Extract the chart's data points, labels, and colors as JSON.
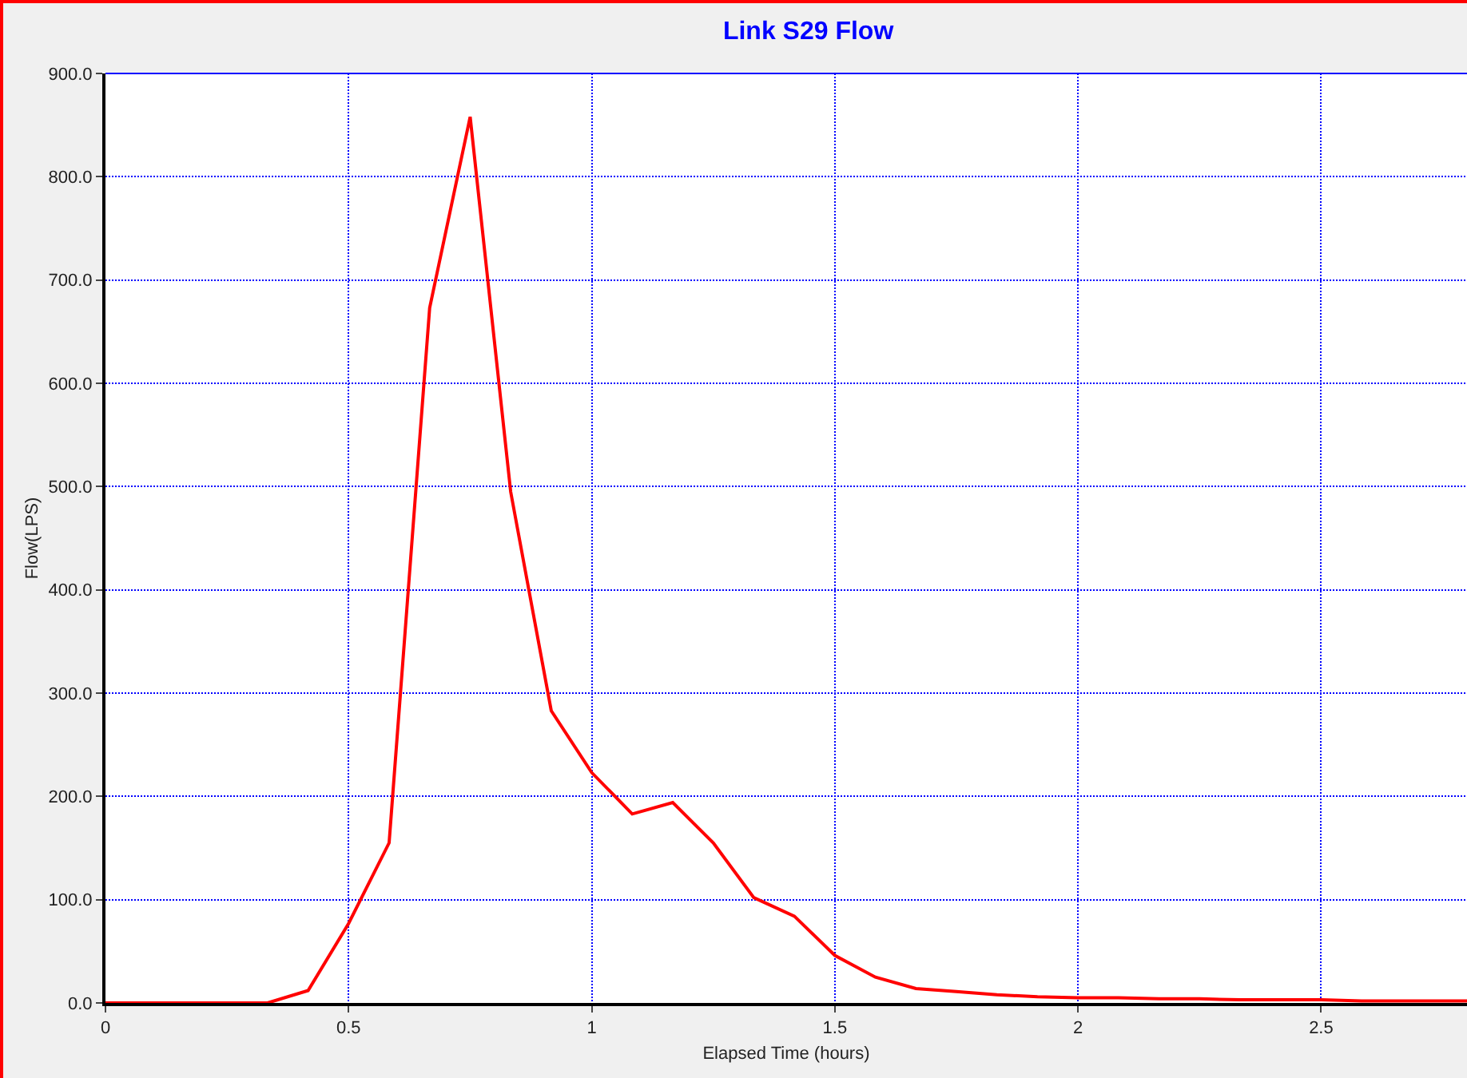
{
  "chart_data": {
    "type": "line",
    "title": "Link S29 Flow",
    "xlabel": "Elapsed Time (hours)",
    "ylabel": "Flow(LPS)",
    "x": [
      0,
      0.0833,
      0.1667,
      0.25,
      0.3333,
      0.4167,
      0.5,
      0.5833,
      0.6667,
      0.75,
      0.8333,
      0.9167,
      1.0,
      1.0833,
      1.1667,
      1.25,
      1.3333,
      1.4167,
      1.5,
      1.5833,
      1.6667,
      1.75,
      1.8333,
      1.9167,
      2.0,
      2.0833,
      2.1667,
      2.25,
      2.3333,
      2.4167,
      2.5,
      2.5833,
      2.6667,
      2.75,
      2.8
    ],
    "series": [
      {
        "color": "#ff0000",
        "values": [
          0,
          0,
          0,
          0,
          0,
          12,
          77,
          155,
          673,
          858,
          495,
          283,
          223,
          183,
          194,
          155,
          102,
          84,
          46,
          25,
          14,
          11,
          8,
          6,
          5,
          5,
          4,
          4,
          3,
          3,
          3,
          2,
          2,
          2,
          2
        ]
      }
    ],
    "xlim": [
      0,
      2.8
    ],
    "xticks": [
      0,
      0.5,
      1,
      1.5,
      2,
      2.5
    ],
    "ylim": [
      0,
      900
    ],
    "yticks": [
      {
        "value": 0,
        "label": "0.0"
      },
      {
        "value": 100,
        "label": "100.0"
      },
      {
        "value": 200,
        "label": "200.0"
      },
      {
        "value": 300,
        "label": "300.0"
      },
      {
        "value": 400,
        "label": "400.0"
      },
      {
        "value": 500,
        "label": "500.0"
      },
      {
        "value": 600,
        "label": "600.0"
      },
      {
        "value": 700,
        "label": "700.0"
      },
      {
        "value": 800,
        "label": "800.0"
      },
      {
        "value": 900,
        "label": "900.0"
      }
    ],
    "grid": true,
    "marker": "none",
    "line_style": "solid"
  }
}
